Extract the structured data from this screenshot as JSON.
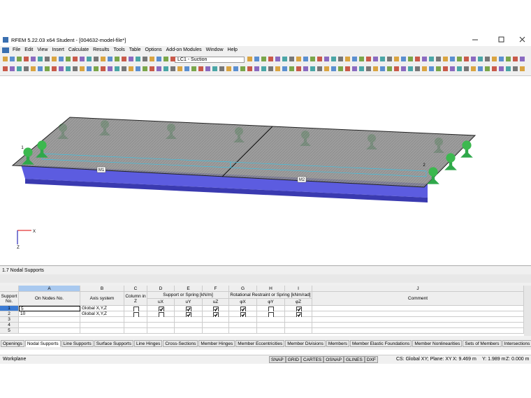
{
  "window": {
    "title": "RFEM 5.22.03 x64 Student - [004632-model-file*]"
  },
  "menu": [
    "File",
    "Edit",
    "View",
    "Insert",
    "Calculate",
    "Results",
    "Tools",
    "Table",
    "Options",
    "Add-on Modules",
    "Window",
    "Help"
  ],
  "toolbar": {
    "load_case": "LC1 - Suction"
  },
  "viewport": {
    "members": [
      "M1",
      "M2"
    ],
    "nodes": [
      "1",
      "2"
    ],
    "axes": [
      "X",
      "Z"
    ]
  },
  "panel": {
    "title": "1.7 Nodal Supports",
    "table": {
      "column_letters": [
        "A",
        "B",
        "C",
        "D",
        "E",
        "F",
        "G",
        "H",
        "I",
        "J"
      ],
      "headers": [
        "Support No.",
        "On Nodes No.",
        "Axis system",
        "Column in Z",
        "Comment"
      ],
      "group_headers": [
        "Support or Spring [kN/m]",
        "Rotational Restraint or Spring [kNm/rad]"
      ],
      "sub_headers": [
        "uX",
        "uY",
        "uZ",
        "φX",
        "φY",
        "φZ"
      ],
      "rows": [
        {
          "no": "1",
          "nodes": "5",
          "axis": "Global X,Y,Z",
          "column": false,
          "supports": [
            true,
            true,
            true,
            true,
            false,
            true
          ]
        },
        {
          "no": "2",
          "nodes": "10",
          "axis": "Global X,Y,Z",
          "column": false,
          "supports": [
            false,
            true,
            true,
            true,
            false,
            true
          ]
        },
        {
          "no": "3"
        },
        {
          "no": "4"
        },
        {
          "no": "5"
        }
      ]
    }
  },
  "tabs": [
    "Openings",
    "Nodal Supports",
    "Line Supports",
    "Surface Supports",
    "Line Hinges",
    "Cross-Sections",
    "Member Hinges",
    "Member Eccentricities",
    "Member Divisions",
    "Members",
    "Member Elastic Foundations",
    "Member Nonlinearities",
    "Sets of Members",
    "Intersections"
  ],
  "active_tab": 1,
  "status": {
    "left": "Workplane",
    "buttons": [
      "SNAP",
      "GRID",
      "CARTES",
      "OSNAP",
      "GLINES",
      "DXF"
    ],
    "plane": "CS: Global XY; Plane: XY",
    "coords": [
      "X: 9.469 m",
      "Y: 1.989 m",
      "Z: 0.000 m"
    ]
  }
}
